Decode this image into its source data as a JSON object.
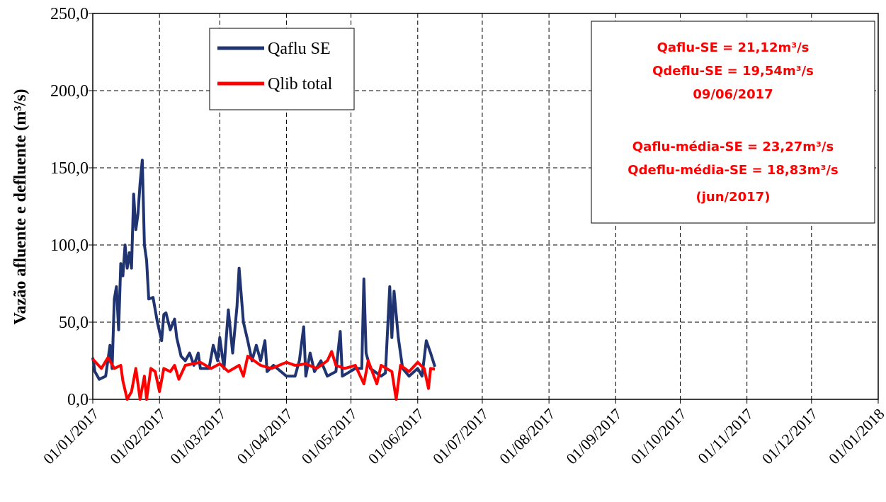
{
  "chart_data": {
    "type": "line",
    "y_label": "Vazão afluente e defluente  (m³/s)",
    "xlim": [
      "01/01/2017",
      "01/01/2018"
    ],
    "xticks": [
      "01/01/2017",
      "01/02/2017",
      "01/03/2017",
      "01/04/2017",
      "01/05/2017",
      "01/06/2017",
      "01/07/2017",
      "01/08/2017",
      "01/09/2017",
      "01/10/2017",
      "01/11/2017",
      "01/12/2017",
      "01/01/2018"
    ],
    "ylim": [
      0,
      250
    ],
    "yticks": [
      {
        "value": 0,
        "label": "0,0"
      },
      {
        "value": 50,
        "label": "50,0"
      },
      {
        "value": 100,
        "label": "100,0"
      },
      {
        "value": 150,
        "label": "150,0"
      },
      {
        "value": 200,
        "label": "200,0"
      },
      {
        "value": 250,
        "label": "250,0"
      }
    ],
    "grid": true,
    "legend": "upper-left",
    "annotations": [
      "Qaflu-SE = 21,12m³/s",
      "Qdeflu-SE = 19,54m³/s",
      "09/06/2017",
      "Qaflu-média-SE = 23,27m³/s",
      "Qdeflu-média-SE = 18,83m³/s",
      "(jun/2017)"
    ],
    "series": [
      {
        "name": "Qaflu SE",
        "color": "#1f3470",
        "x": [
          "01/01/2017",
          "02/01/2017",
          "04/01/2017",
          "07/01/2017",
          "09/01/2017",
          "10/01/2017",
          "11/01/2017",
          "12/01/2017",
          "13/01/2017",
          "14/01/2017",
          "15/01/2017",
          "16/01/2017",
          "17/01/2017",
          "18/01/2017",
          "19/01/2017",
          "20/01/2017",
          "21/01/2017",
          "22/01/2017",
          "23/01/2017",
          "24/01/2017",
          "25/01/2017",
          "26/01/2017",
          "27/01/2017",
          "29/01/2017",
          "31/01/2017",
          "02/02/2017",
          "03/02/2017",
          "04/02/2017",
          "06/02/2017",
          "08/02/2017",
          "09/02/2017",
          "11/02/2017",
          "13/02/2017",
          "15/02/2017",
          "17/02/2017",
          "19/02/2017",
          "20/02/2017",
          "24/02/2017",
          "26/02/2017",
          "28/02/2017",
          "01/03/2017",
          "03/03/2017",
          "05/03/2017",
          "07/03/2017",
          "09/03/2017",
          "10/03/2017",
          "12/03/2017",
          "14/03/2017",
          "16/03/2017",
          "18/03/2017",
          "20/03/2017",
          "22/03/2017",
          "23/03/2017",
          "26/03/2017",
          "01/04/2017",
          "05/04/2017",
          "07/04/2017",
          "09/04/2017",
          "10/04/2017",
          "12/04/2017",
          "14/04/2017",
          "17/04/2017",
          "20/04/2017",
          "24/04/2017",
          "26/04/2017",
          "27/04/2017",
          "03/05/2017",
          "06/05/2017",
          "07/05/2017",
          "08/05/2017",
          "10/05/2017",
          "15/05/2017",
          "17/05/2017",
          "19/05/2017",
          "20/05/2017",
          "21/05/2017",
          "23/05/2017",
          "25/05/2017",
          "28/05/2017",
          "01/06/2017",
          "03/06/2017",
          "05/06/2017",
          "07/06/2017",
          "09/06/2017"
        ],
        "values": [
          27,
          18,
          13,
          15,
          35,
          20,
          65,
          73,
          45,
          88,
          80,
          100,
          85,
          95,
          85,
          133,
          110,
          120,
          140,
          155,
          100,
          90,
          65,
          66,
          50,
          38,
          55,
          56,
          45,
          52,
          40,
          28,
          25,
          30,
          22,
          30,
          20,
          20,
          35,
          25,
          40,
          20,
          58,
          30,
          60,
          85,
          50,
          38,
          25,
          35,
          25,
          38,
          18,
          22,
          15,
          15,
          25,
          47,
          15,
          30,
          18,
          25,
          15,
          18,
          44,
          15,
          20,
          20,
          78,
          30,
          20,
          15,
          17,
          73,
          40,
          70,
          40,
          20,
          15,
          20,
          15,
          38,
          30,
          21.12
        ]
      },
      {
        "name": "Qlib total",
        "color": "#ff0000",
        "x": [
          "01/01/2017",
          "05/01/2017",
          "08/01/2017",
          "11/01/2017",
          "14/01/2017",
          "15/01/2017",
          "17/01/2017",
          "19/01/2017",
          "21/01/2017",
          "23/01/2017",
          "25/01/2017",
          "26/01/2017",
          "28/01/2017",
          "30/01/2017",
          "01/02/2017",
          "03/02/2017",
          "06/02/2017",
          "08/02/2017",
          "10/02/2017",
          "13/02/2017",
          "20/02/2017",
          "25/02/2017",
          "01/03/2017",
          "05/03/2017",
          "10/03/2017",
          "12/03/2017",
          "14/03/2017",
          "20/03/2017",
          "25/03/2017",
          "01/04/2017",
          "05/04/2017",
          "10/04/2017",
          "15/04/2017",
          "20/04/2017",
          "22/04/2017",
          "24/04/2017",
          "28/04/2017",
          "03/05/2017",
          "07/05/2017",
          "09/05/2017",
          "13/05/2017",
          "15/05/2017",
          "20/05/2017",
          "22/05/2017",
          "24/05/2017",
          "28/05/2017",
          "01/06/2017",
          "04/06/2017",
          "06/06/2017",
          "07/06/2017",
          "09/06/2017"
        ],
        "values": [
          26,
          20,
          27,
          20,
          22,
          12,
          0,
          5,
          20,
          0,
          15,
          0,
          20,
          18,
          5,
          20,
          18,
          22,
          13,
          22,
          24,
          20,
          23,
          18,
          22,
          15,
          28,
          22,
          20,
          24,
          22,
          23,
          20,
          25,
          31,
          22,
          20,
          22,
          10,
          25,
          10,
          22,
          18,
          0,
          22,
          18,
          24,
          20,
          7,
          20,
          19.54
        ]
      }
    ]
  }
}
